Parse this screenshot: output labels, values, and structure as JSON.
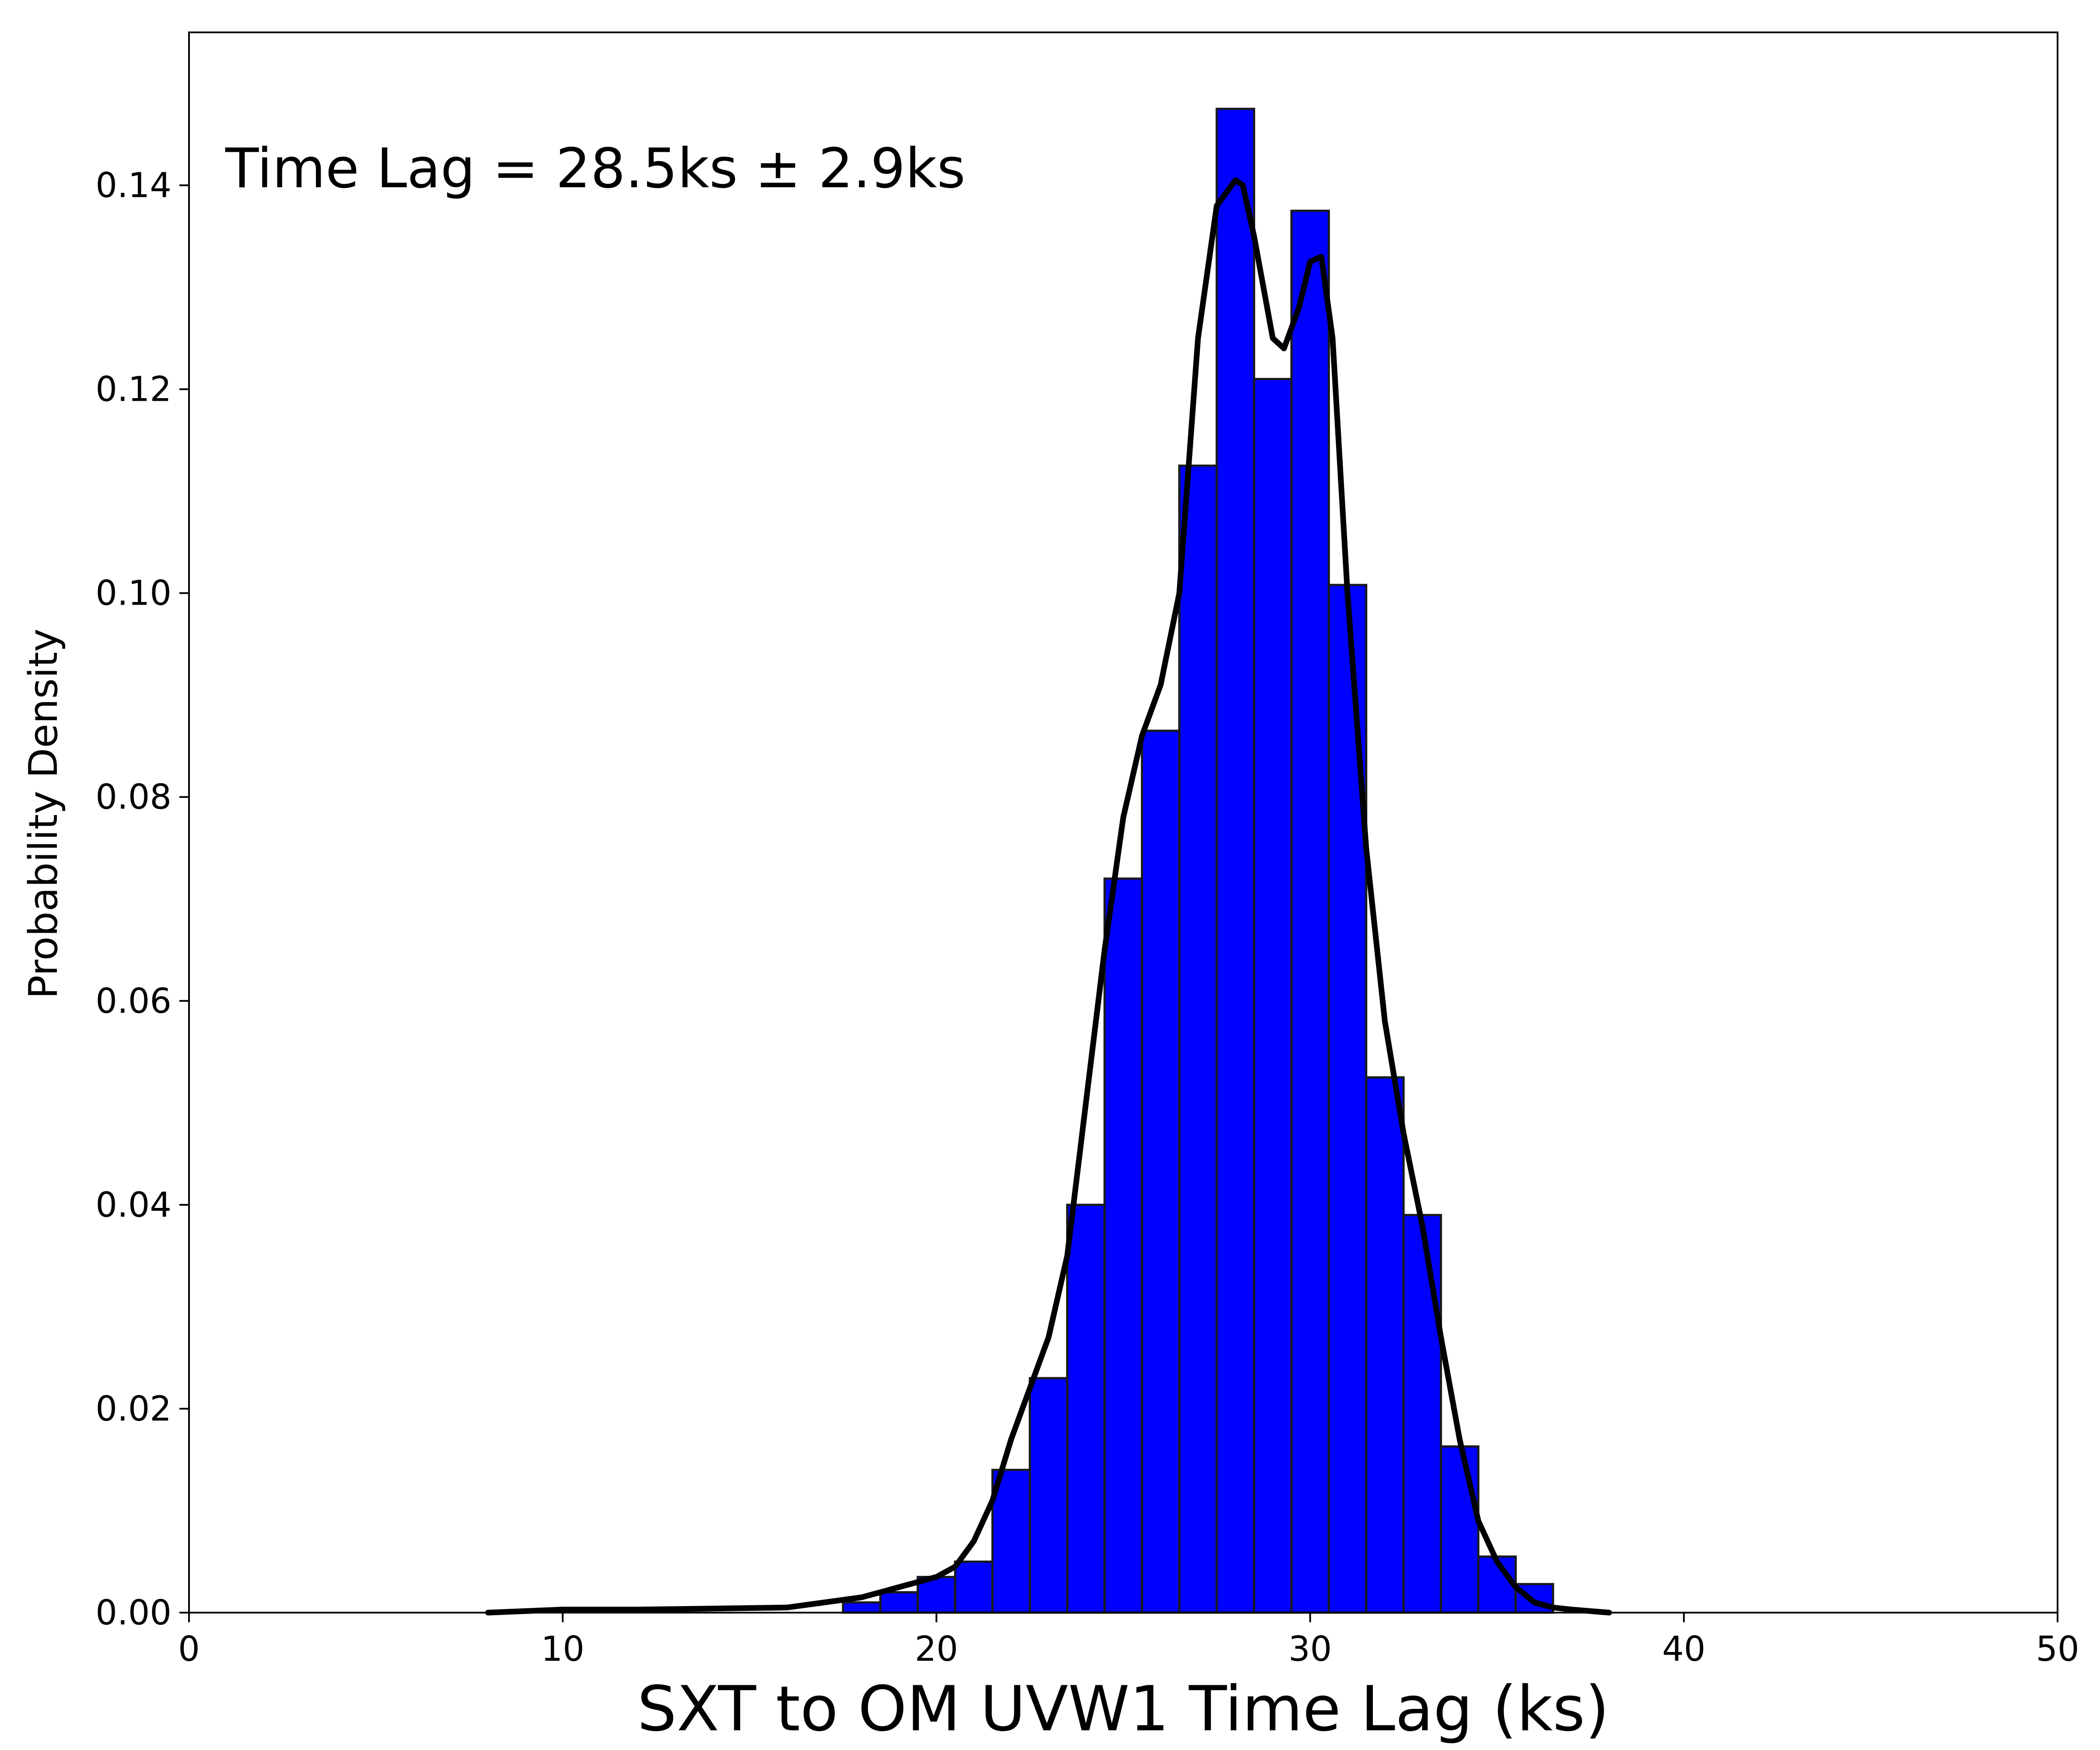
{
  "chart_data": {
    "type": "bar",
    "xlabel": "SXT to OM UVW1 Time Lag (ks)",
    "ylabel": "Probability Density",
    "annotation": "Time Lag = 28.5ks ± 2.9ks",
    "xlim": [
      0,
      50
    ],
    "ylim": [
      0,
      0.155
    ],
    "x_ticks": [
      0,
      10,
      20,
      30,
      40,
      50
    ],
    "x_tick_labels": [
      "0",
      "10",
      "20",
      "30",
      "40",
      "50"
    ],
    "y_ticks": [
      0.0,
      0.02,
      0.04,
      0.06,
      0.08,
      0.1,
      0.12,
      0.14
    ],
    "y_tick_labels": [
      "0.00",
      "0.02",
      "0.04",
      "0.06",
      "0.08",
      "0.10",
      "0.12",
      "0.14"
    ],
    "grid": false,
    "bar_color": "#0000ff",
    "bar_edge_color": "#1a1a1a",
    "curve_color": "#000000",
    "bins": {
      "left_edges": [
        17.5,
        18.5,
        19.5,
        20.5,
        21.5,
        22.5,
        23.5,
        24.5,
        25.5,
        26.5,
        27.5,
        28.5,
        29.5,
        30.5,
        31.5,
        32.5,
        33.5,
        34.5,
        35.5
      ],
      "width": 1.0,
      "values": [
        0.001,
        0.002,
        0.0035,
        0.005,
        0.014,
        0.023,
        0.04,
        0.072,
        0.0865,
        0.1125,
        0.1475,
        0.121,
        0.1375,
        0.1008,
        0.0525,
        0.039,
        0.0163,
        0.0055,
        0.0028
      ]
    },
    "series": [
      {
        "type": "line",
        "x": [
          8,
          10,
          12,
          14,
          16,
          17,
          18,
          19,
          20,
          20.5,
          21,
          21.5,
          22,
          22.5,
          23,
          23.5,
          24,
          24.5,
          25,
          25.5,
          26,
          26.5,
          27,
          27.5,
          28,
          28.2,
          28.5,
          29,
          29.3,
          29.7,
          30,
          30.3,
          30.6,
          31,
          31.5,
          32,
          32.5,
          33,
          33.5,
          34,
          34.5,
          35,
          35.5,
          36,
          36.5,
          37,
          38
        ],
        "y": [
          0.0,
          0.0003,
          0.0003,
          0.0004,
          0.0005,
          0.001,
          0.0015,
          0.0025,
          0.0035,
          0.0045,
          0.007,
          0.011,
          0.017,
          0.022,
          0.027,
          0.035,
          0.05,
          0.065,
          0.078,
          0.086,
          0.091,
          0.1,
          0.125,
          0.138,
          0.1405,
          0.14,
          0.135,
          0.125,
          0.124,
          0.128,
          0.1325,
          0.133,
          0.125,
          0.1,
          0.075,
          0.058,
          0.047,
          0.038,
          0.027,
          0.017,
          0.009,
          0.005,
          0.0025,
          0.001,
          0.0005,
          0.0003,
          0.0
        ]
      }
    ]
  }
}
